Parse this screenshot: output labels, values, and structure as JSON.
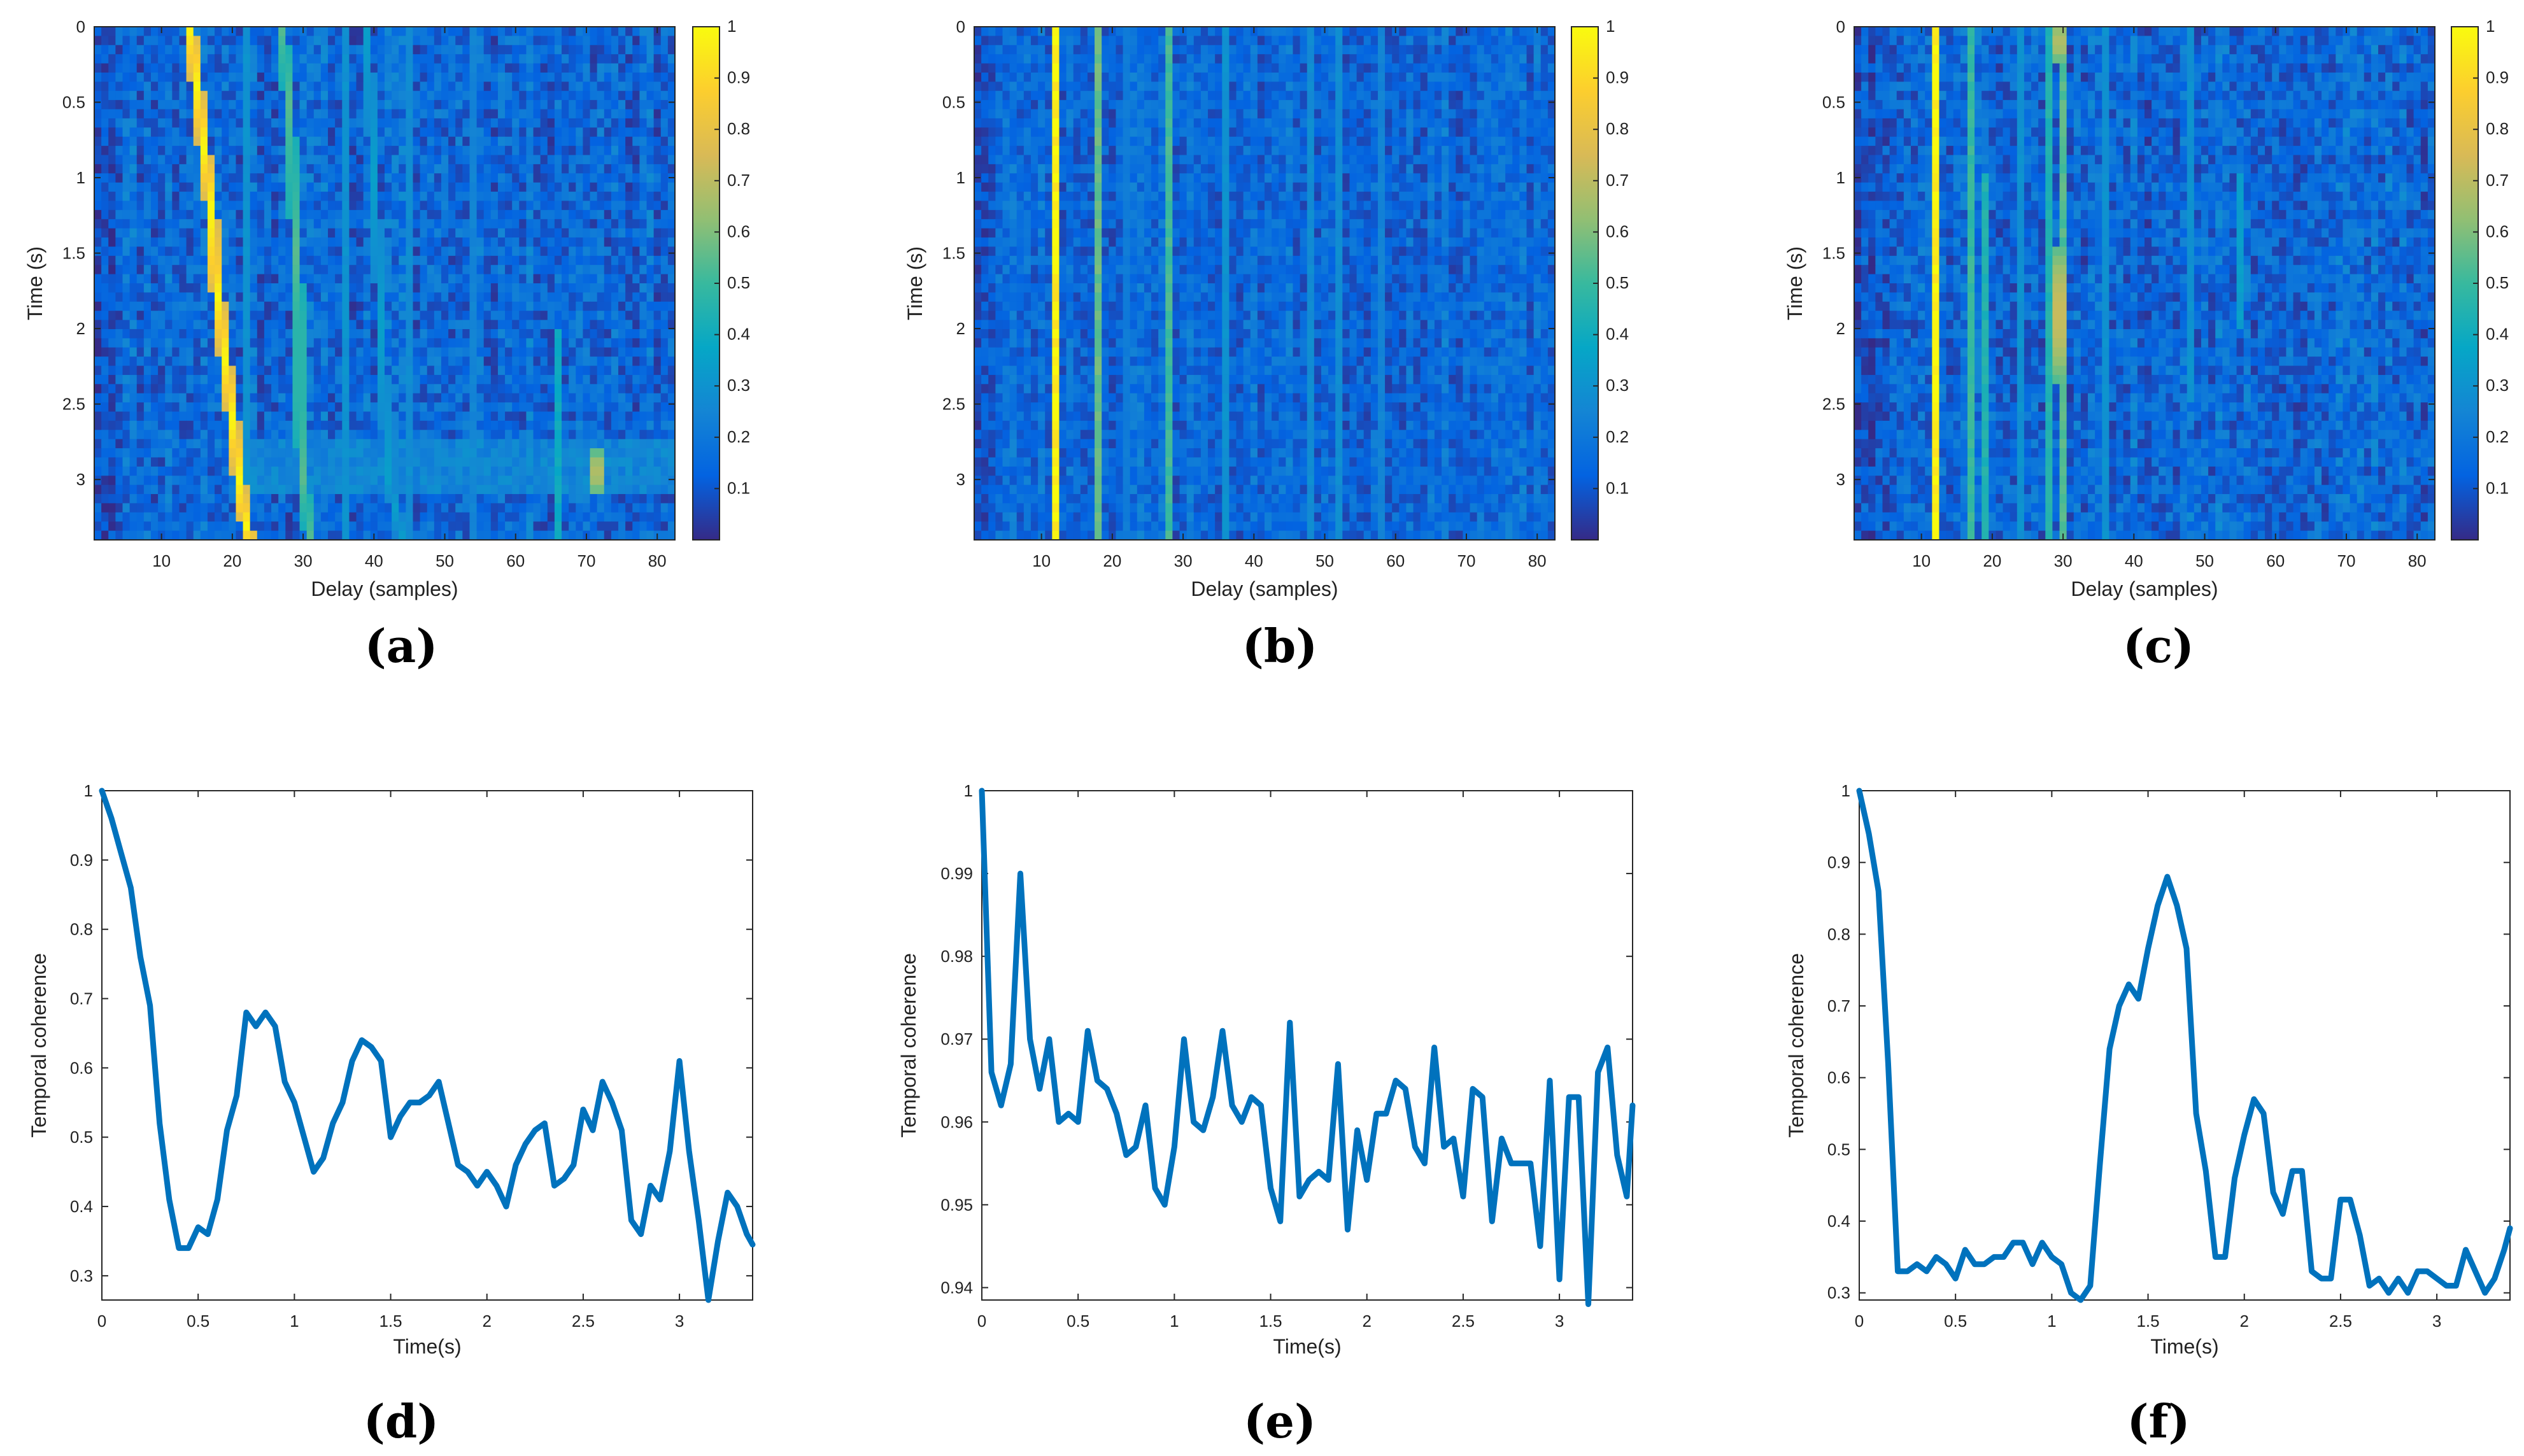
{
  "colors": {
    "line": "#0072bd",
    "axis": "#262626",
    "grid": "#d9d9d9",
    "parula": [
      "#352a87",
      "#0363e1",
      "#1485d4",
      "#06a7c6",
      "#38b99e",
      "#92bf73",
      "#d9ba56",
      "#fcce2e",
      "#f9fb0e"
    ]
  },
  "chart_data": [
    {
      "id": "a",
      "type": "heatmap",
      "caption": "(a)",
      "xlabel": "Delay (samples)",
      "ylabel": "Time (s)",
      "xlim": [
        0.5,
        82.5
      ],
      "ylim": [
        0,
        3.4
      ],
      "y_reversed": true,
      "xticks": [
        10,
        20,
        30,
        40,
        50,
        60,
        70,
        80
      ],
      "xtick_labels": [
        "10",
        "20",
        "30",
        "40",
        "50",
        "60",
        "70",
        "80"
      ],
      "yticks": [
        0,
        0.5,
        1,
        1.5,
        2,
        2.5,
        3
      ],
      "ytick_labels": [
        "0",
        "0.5",
        "1",
        "1.5",
        "2",
        "2.5",
        "3"
      ],
      "colorbar_ticks": [
        0.1,
        0.2,
        0.3,
        0.4,
        0.5,
        0.6,
        0.7,
        0.8,
        0.9,
        1
      ],
      "colorbar_tick_labels": [
        "0.1",
        "0.2",
        "0.3",
        "0.4",
        "0.5",
        "0.6",
        "0.7",
        "0.8",
        "0.9",
        "1"
      ],
      "nx": 82,
      "ny": 56,
      "background_level": 0.15,
      "noise": 0.1,
      "seed": 11,
      "features": [
        {
          "kind": "drift",
          "value": 1.0,
          "width": 0.9,
          "t": [
            0,
            0.4,
            0.8,
            1.2,
            1.6,
            2.0,
            2.4,
            2.8,
            3.2,
            3.4
          ],
          "delay": [
            14,
            15,
            16,
            17,
            17.5,
            18.5,
            19.5,
            20.5,
            21.5,
            22.5
          ]
        },
        {
          "kind": "drift",
          "value": 0.55,
          "width": 0.8,
          "t": [
            0,
            0.5,
            1.0,
            1.5,
            2.0,
            2.5,
            3.0,
            3.4
          ],
          "delay": [
            27,
            28,
            28.5,
            29,
            29.5,
            29.5,
            30,
            31
          ]
        },
        {
          "kind": "drift",
          "value": 0.35,
          "width": 0.7,
          "t": [
            0,
            1.0,
            2.0,
            3.0,
            3.4
          ],
          "delay": [
            39,
            40,
            41,
            42,
            44
          ]
        },
        {
          "kind": "vline",
          "delay": 22,
          "value": 0.3,
          "t0": 0,
          "t1": 3.4
        },
        {
          "kind": "vline",
          "delay": 36,
          "value": 0.3,
          "t0": 0,
          "t1": 3.4
        },
        {
          "kind": "vline",
          "delay": 45,
          "value": 0.28,
          "t0": 0,
          "t1": 3.4
        },
        {
          "kind": "vline",
          "delay": 54,
          "value": 0.25,
          "t0": 0,
          "t1": 3.4
        },
        {
          "kind": "vline",
          "delay": 66,
          "value": 0.4,
          "t0": 2.0,
          "t1": 3.4
        },
        {
          "kind": "blob",
          "delay": 71.5,
          "t": 2.95,
          "value": 0.75,
          "rx": 1,
          "rt": 0.2
        },
        {
          "kind": "band",
          "t0": 2.75,
          "t1": 3.1,
          "value": 0.25,
          "d0": 23,
          "d1": 82
        }
      ]
    },
    {
      "id": "b",
      "type": "heatmap",
      "caption": "(b)",
      "xlabel": "Delay (samples)",
      "ylabel": "Time (s)",
      "xlim": [
        0.5,
        82.5
      ],
      "ylim": [
        0,
        3.4
      ],
      "y_reversed": true,
      "xticks": [
        10,
        20,
        30,
        40,
        50,
        60,
        70,
        80
      ],
      "xtick_labels": [
        "10",
        "20",
        "30",
        "40",
        "50",
        "60",
        "70",
        "80"
      ],
      "yticks": [
        0,
        0.5,
        1,
        1.5,
        2,
        2.5,
        3
      ],
      "ytick_labels": [
        "0",
        "0.5",
        "1",
        "1.5",
        "2",
        "2.5",
        "3"
      ],
      "colorbar_ticks": [
        0.1,
        0.2,
        0.3,
        0.4,
        0.5,
        0.6,
        0.7,
        0.8,
        0.9,
        1
      ],
      "colorbar_tick_labels": [
        "0.1",
        "0.2",
        "0.3",
        "0.4",
        "0.5",
        "0.6",
        "0.7",
        "0.8",
        "0.9",
        "1"
      ],
      "nx": 82,
      "ny": 56,
      "background_level": 0.15,
      "noise": 0.08,
      "seed": 23,
      "features": [
        {
          "kind": "vline",
          "delay": 12,
          "value": 1.0,
          "t0": 0,
          "t1": 3.4
        },
        {
          "kind": "vline",
          "delay": 18,
          "value": 0.58,
          "t0": 0,
          "t1": 3.4
        },
        {
          "kind": "vline",
          "delay": 28,
          "value": 0.52,
          "t0": 0,
          "t1": 3.4
        },
        {
          "kind": "vline",
          "delay": 22,
          "value": 0.22,
          "t0": 0,
          "t1": 3.4
        },
        {
          "kind": "vline",
          "delay": 36,
          "value": 0.3,
          "t0": 0,
          "t1": 3.4
        },
        {
          "kind": "vline",
          "delay": 48,
          "value": 0.28,
          "t0": 0,
          "t1": 3.4
        },
        {
          "kind": "vline",
          "delay": 52,
          "value": 0.28,
          "t0": 0,
          "t1": 3.4
        },
        {
          "kind": "vline",
          "delay": 58,
          "value": 0.25,
          "t0": 0,
          "t1": 3.4
        }
      ]
    },
    {
      "id": "c",
      "type": "heatmap",
      "caption": "(c)",
      "xlabel": "Delay (samples)",
      "ylabel": "Time (s)",
      "xlim": [
        0.5,
        82.5
      ],
      "ylim": [
        0,
        3.4
      ],
      "y_reversed": true,
      "xticks": [
        10,
        20,
        30,
        40,
        50,
        60,
        70,
        80
      ],
      "xtick_labels": [
        "10",
        "20",
        "30",
        "40",
        "50",
        "60",
        "70",
        "80"
      ],
      "yticks": [
        0,
        0.5,
        1,
        1.5,
        2,
        2.5,
        3
      ],
      "ytick_labels": [
        "0",
        "0.5",
        "1",
        "1.5",
        "2",
        "2.5",
        "3"
      ],
      "colorbar_ticks": [
        0.1,
        0.2,
        0.3,
        0.4,
        0.5,
        0.6,
        0.7,
        0.8,
        0.9,
        1
      ],
      "colorbar_tick_labels": [
        "0.1",
        "0.2",
        "0.3",
        "0.4",
        "0.5",
        "0.6",
        "0.7",
        "0.8",
        "0.9",
        "1"
      ],
      "nx": 82,
      "ny": 56,
      "background_level": 0.15,
      "noise": 0.1,
      "seed": 37,
      "features": [
        {
          "kind": "vline",
          "delay": 12,
          "value": 1.0,
          "t0": 0,
          "t1": 3.4
        },
        {
          "kind": "vline",
          "delay": 17,
          "value": 0.5,
          "t0": 0,
          "t1": 3.4
        },
        {
          "kind": "vline",
          "delay": 19,
          "value": 0.45,
          "t0": 1.0,
          "t1": 3.4
        },
        {
          "kind": "vline",
          "delay": 28,
          "value": 0.45,
          "t0": 0,
          "t1": 3.4
        },
        {
          "kind": "vline",
          "delay": 30,
          "value": 0.55,
          "t0": 0,
          "t1": 3.4
        },
        {
          "kind": "blob",
          "delay": 29.5,
          "t": 1.9,
          "value": 0.85,
          "rx": 0.8,
          "rt": 0.6
        },
        {
          "kind": "blob",
          "delay": 29.5,
          "t": 0.1,
          "value": 0.8,
          "rx": 0.8,
          "rt": 0.2
        },
        {
          "kind": "vline",
          "delay": 24,
          "value": 0.3,
          "t0": 0,
          "t1": 3.4
        },
        {
          "kind": "vline",
          "delay": 36,
          "value": 0.3,
          "t0": 0,
          "t1": 3.4
        },
        {
          "kind": "vline",
          "delay": 48,
          "value": 0.3,
          "t0": 0,
          "t1": 2.5
        },
        {
          "kind": "vline",
          "delay": 55,
          "value": 0.35,
          "t0": 1.0,
          "t1": 2.0
        }
      ]
    },
    {
      "id": "d",
      "type": "line",
      "caption": "(d)",
      "xlabel": "Time(s)",
      "ylabel": "Temporal coherence",
      "xlim": [
        0,
        3.38
      ],
      "ylim": [
        0.265,
        1.0
      ],
      "xticks": [
        0,
        0.5,
        1,
        1.5,
        2,
        2.5,
        3
      ],
      "xtick_labels": [
        "0",
        "0.5",
        "1",
        "1.5",
        "2",
        "2.5",
        "3"
      ],
      "yticks": [
        0.3,
        0.4,
        0.5,
        0.6,
        0.7,
        0.8,
        0.9,
        1
      ],
      "ytick_labels": [
        "0.3",
        "0.4",
        "0.5",
        "0.6",
        "0.7",
        "0.8",
        "0.9",
        "1"
      ],
      "x": [
        0,
        0.05,
        0.1,
        0.15,
        0.2,
        0.25,
        0.3,
        0.35,
        0.4,
        0.45,
        0.5,
        0.55,
        0.6,
        0.65,
        0.7,
        0.75,
        0.8,
        0.85,
        0.9,
        0.95,
        1.0,
        1.05,
        1.1,
        1.15,
        1.2,
        1.25,
        1.3,
        1.35,
        1.4,
        1.45,
        1.5,
        1.55,
        1.6,
        1.65,
        1.7,
        1.75,
        1.8,
        1.85,
        1.9,
        1.95,
        2.0,
        2.05,
        2.1,
        2.15,
        2.2,
        2.25,
        2.3,
        2.35,
        2.4,
        2.45,
        2.5,
        2.55,
        2.6,
        2.65,
        2.7,
        2.75,
        2.8,
        2.85,
        2.9,
        2.95,
        3.0,
        3.05,
        3.1,
        3.15,
        3.2,
        3.25,
        3.3,
        3.35,
        3.38
      ],
      "y": [
        1.0,
        0.96,
        0.91,
        0.86,
        0.76,
        0.69,
        0.52,
        0.41,
        0.34,
        0.34,
        0.37,
        0.36,
        0.41,
        0.51,
        0.56,
        0.68,
        0.66,
        0.68,
        0.66,
        0.58,
        0.55,
        0.5,
        0.45,
        0.47,
        0.52,
        0.55,
        0.61,
        0.64,
        0.63,
        0.61,
        0.5,
        0.53,
        0.55,
        0.55,
        0.56,
        0.58,
        0.52,
        0.46,
        0.45,
        0.43,
        0.45,
        0.43,
        0.4,
        0.46,
        0.49,
        0.51,
        0.52,
        0.43,
        0.44,
        0.46,
        0.54,
        0.51,
        0.58,
        0.55,
        0.51,
        0.38,
        0.36,
        0.43,
        0.41,
        0.48,
        0.61,
        0.48,
        0.38,
        0.265,
        0.35,
        0.42,
        0.4,
        0.36,
        0.345
      ]
    },
    {
      "id": "e",
      "type": "line",
      "caption": "(e)",
      "xlabel": "Time(s)",
      "ylabel": "Temporal coherence",
      "xlim": [
        0,
        3.38
      ],
      "ylim": [
        0.9385,
        1.0
      ],
      "xticks": [
        0,
        0.5,
        1,
        1.5,
        2,
        2.5,
        3
      ],
      "xtick_labels": [
        "0",
        "0.5",
        "1",
        "1.5",
        "2",
        "2.5",
        "3"
      ],
      "yticks": [
        0.94,
        0.95,
        0.96,
        0.97,
        0.98,
        0.99,
        1
      ],
      "ytick_labels": [
        "0.94",
        "0.95",
        "0.96",
        "0.97",
        "0.98",
        "0.99",
        "1"
      ],
      "x": [
        0,
        0.05,
        0.1,
        0.15,
        0.2,
        0.25,
        0.3,
        0.35,
        0.4,
        0.45,
        0.5,
        0.55,
        0.6,
        0.65,
        0.7,
        0.75,
        0.8,
        0.85,
        0.9,
        0.95,
        1.0,
        1.05,
        1.1,
        1.15,
        1.2,
        1.25,
        1.3,
        1.35,
        1.4,
        1.45,
        1.5,
        1.55,
        1.6,
        1.65,
        1.7,
        1.75,
        1.8,
        1.85,
        1.9,
        1.95,
        2.0,
        2.05,
        2.1,
        2.15,
        2.2,
        2.25,
        2.3,
        2.35,
        2.4,
        2.45,
        2.5,
        2.55,
        2.6,
        2.65,
        2.7,
        2.75,
        2.8,
        2.85,
        2.9,
        2.95,
        3.0,
        3.05,
        3.1,
        3.15,
        3.2,
        3.25,
        3.3,
        3.35,
        3.38
      ],
      "y": [
        1.0,
        0.966,
        0.962,
        0.967,
        0.99,
        0.97,
        0.964,
        0.97,
        0.96,
        0.961,
        0.96,
        0.971,
        0.965,
        0.964,
        0.961,
        0.956,
        0.957,
        0.962,
        0.952,
        0.95,
        0.957,
        0.97,
        0.96,
        0.959,
        0.963,
        0.971,
        0.962,
        0.96,
        0.963,
        0.962,
        0.952,
        0.948,
        0.972,
        0.951,
        0.953,
        0.954,
        0.953,
        0.967,
        0.947,
        0.959,
        0.953,
        0.961,
        0.961,
        0.965,
        0.964,
        0.957,
        0.955,
        0.969,
        0.957,
        0.958,
        0.951,
        0.964,
        0.963,
        0.948,
        0.958,
        0.955,
        0.955,
        0.955,
        0.945,
        0.965,
        0.941,
        0.963,
        0.963,
        0.938,
        0.966,
        0.969,
        0.956,
        0.951,
        0.962
      ]
    },
    {
      "id": "f",
      "type": "line",
      "caption": "(f)",
      "xlabel": "Time(s)",
      "ylabel": "Temporal coherence",
      "xlim": [
        0,
        3.38
      ],
      "ylim": [
        0.29,
        1.0
      ],
      "xticks": [
        0,
        0.5,
        1,
        1.5,
        2,
        2.5,
        3
      ],
      "xtick_labels": [
        "0",
        "0.5",
        "1",
        "1.5",
        "2",
        "2.5",
        "3"
      ],
      "yticks": [
        0.3,
        0.4,
        0.5,
        0.6,
        0.7,
        0.8,
        0.9,
        1
      ],
      "ytick_labels": [
        "0.3",
        "0.4",
        "0.5",
        "0.6",
        "0.7",
        "0.8",
        "0.9",
        "1"
      ],
      "x": [
        0,
        0.05,
        0.1,
        0.15,
        0.2,
        0.25,
        0.3,
        0.35,
        0.4,
        0.45,
        0.5,
        0.55,
        0.6,
        0.65,
        0.7,
        0.75,
        0.8,
        0.85,
        0.9,
        0.95,
        1.0,
        1.05,
        1.1,
        1.15,
        1.2,
        1.25,
        1.3,
        1.35,
        1.4,
        1.45,
        1.5,
        1.55,
        1.6,
        1.65,
        1.7,
        1.75,
        1.8,
        1.85,
        1.9,
        1.95,
        2.0,
        2.05,
        2.1,
        2.15,
        2.2,
        2.25,
        2.3,
        2.35,
        2.4,
        2.45,
        2.5,
        2.55,
        2.6,
        2.65,
        2.7,
        2.75,
        2.8,
        2.85,
        2.9,
        2.95,
        3.0,
        3.05,
        3.1,
        3.15,
        3.2,
        3.25,
        3.3,
        3.35,
        3.38
      ],
      "y": [
        1.0,
        0.94,
        0.86,
        0.62,
        0.33,
        0.33,
        0.34,
        0.33,
        0.35,
        0.34,
        0.32,
        0.36,
        0.34,
        0.34,
        0.35,
        0.35,
        0.37,
        0.37,
        0.34,
        0.37,
        0.35,
        0.34,
        0.3,
        0.29,
        0.31,
        0.48,
        0.64,
        0.7,
        0.73,
        0.71,
        0.78,
        0.84,
        0.88,
        0.84,
        0.78,
        0.55,
        0.47,
        0.35,
        0.35,
        0.46,
        0.52,
        0.57,
        0.55,
        0.44,
        0.41,
        0.47,
        0.47,
        0.33,
        0.32,
        0.32,
        0.43,
        0.43,
        0.38,
        0.31,
        0.32,
        0.3,
        0.32,
        0.3,
        0.33,
        0.33,
        0.32,
        0.31,
        0.31,
        0.36,
        0.33,
        0.3,
        0.32,
        0.36,
        0.39
      ]
    }
  ]
}
